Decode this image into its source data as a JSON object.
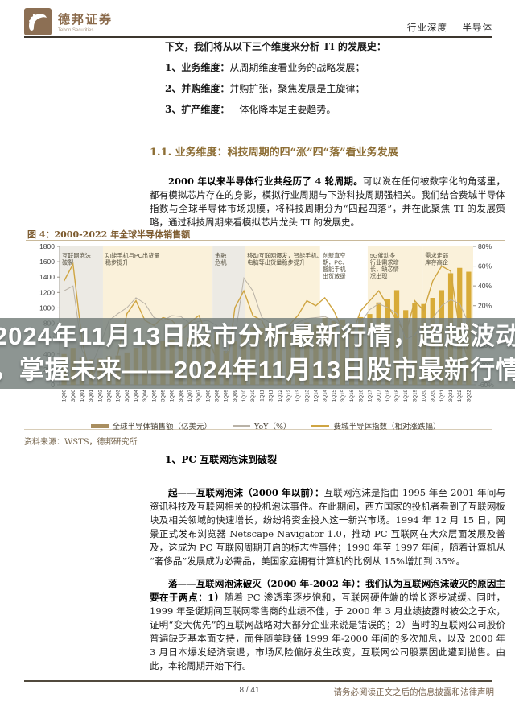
{
  "header": {
    "logo_title": "德邦证券",
    "logo_subtitle": "Tebon Securities",
    "tag1": "行业深度",
    "tag2": "半导体"
  },
  "intro": {
    "lead": "下文，我们将从以下三个维度来分析 TI 的发展史：",
    "items": [
      {
        "label": "1、业务维度：",
        "text": "从周期维度看业务的战略发展；"
      },
      {
        "label": "2、并购维度：",
        "text": "并购扩张，聚焦发展是主旋律；"
      },
      {
        "label": "3、扩产维度：",
        "text": "一体化降本是主要趋势。"
      }
    ]
  },
  "section1": {
    "heading": "1.1. 业务维度：科技周期的四“涨”四“落”看业务发展",
    "para_lead": "2000 年以来半导体行业共经历了 4 轮周期。",
    "para_text": "可以说在任何被数字化的角落里，都有模拟芯片存在的身影，模拟行业周期与下游科技周期强相关。我们结合费城半导体指数与全球半导体市场规模，将科技周期分为“四起四落”，并在此聚焦 TI 的发展策略，通过科技周期来看模拟芯片龙头 TI 的发展史。"
  },
  "figure": {
    "title": "图 4：2000-2022 年全球半导体销售额",
    "source": "资料来源：WSTS，德邦研究所"
  },
  "chart_data": {
    "type": "bar",
    "title": "2000-2022 年全球半导体销售额",
    "x": [
      "1Q00",
      "3Q00",
      "1Q01",
      "3Q01",
      "1Q02",
      "3Q02",
      "1Q03",
      "3Q03",
      "1Q04",
      "3Q04",
      "1Q05",
      "3Q05",
      "1Q06",
      "3Q06",
      "1Q07",
      "3Q07",
      "1Q08",
      "3Q08",
      "1Q09",
      "3Q09",
      "1Q10",
      "3Q10",
      "1Q11",
      "3Q11",
      "1Q12",
      "3Q12",
      "1Q13",
      "3Q13",
      "1Q14",
      "3Q14",
      "1Q15",
      "3Q15",
      "1Q16",
      "3Q16",
      "1Q17",
      "3Q17",
      "1Q18",
      "3Q18",
      "1Q19",
      "3Q19",
      "1Q20",
      "3Q20",
      "1Q21",
      "3Q21",
      "1Q22",
      "3Q22"
    ],
    "series": [
      {
        "name": "全球半导体销售额（亿美元）",
        "kind": "bar",
        "axis": "left",
        "color": "#d6a62f",
        "values": [
          400,
          480,
          350,
          330,
          340,
          370,
          380,
          420,
          480,
          540,
          530,
          570,
          590,
          630,
          610,
          660,
          640,
          680,
          440,
          570,
          690,
          750,
          740,
          760,
          710,
          760,
          740,
          810,
          780,
          870,
          830,
          850,
          790,
          880,
          920,
          1070,
          1110,
          1230,
          970,
          1060,
          1050,
          1130,
          1230,
          1450,
          1520,
          1470
        ]
      },
      {
        "name": "YoY（%）",
        "kind": "line",
        "axis": "right",
        "color": "#b9b2a6",
        "values": [
          35,
          40,
          -25,
          -42,
          -20,
          5,
          12,
          18,
          28,
          22,
          8,
          5,
          10,
          9,
          2,
          4,
          5,
          0,
          -28,
          -12,
          48,
          35,
          8,
          2,
          -5,
          -2,
          3,
          7,
          8,
          9,
          5,
          -1,
          -4,
          3,
          16,
          22,
          18,
          12,
          -14,
          -10,
          5,
          7,
          20,
          26,
          22,
          2
        ]
      },
      {
        "name": "费城半导体指数（相对涨跌幅）",
        "kind": "line",
        "axis": "right",
        "color": "#cfa542",
        "values": [
          45,
          62,
          -15,
          -55,
          -35,
          -58,
          -28,
          12,
          25,
          5,
          0,
          8,
          5,
          -5,
          3,
          10,
          -12,
          -35,
          -52,
          18,
          35,
          10,
          5,
          -15,
          -5,
          0,
          10,
          25,
          20,
          28,
          15,
          -5,
          -10,
          15,
          25,
          35,
          20,
          5,
          -8,
          25,
          15,
          45,
          60,
          55,
          -5,
          -38
        ]
      }
    ],
    "left_axis": {
      "min": 0,
      "max": 1800,
      "ticks": [
        1800,
        1600,
        1400,
        1200,
        1000,
        800,
        600,
        400,
        200,
        0
      ]
    },
    "right_axis": {
      "min": -60,
      "max": 80,
      "ticks": [
        "80%",
        "60%",
        "40%",
        "20%",
        "0%",
        "-20%",
        "-40%",
        "-60%"
      ]
    },
    "bands": [
      {
        "label": "互联网泡沫\n破裂",
        "from": 0.0,
        "to": 0.105,
        "color": "#eceae4"
      },
      {
        "label": "功能手机与PC出货量\n稳步提升",
        "from": 0.105,
        "to": 0.37,
        "color": "#faf1da"
      },
      {
        "label": "金融\n危机",
        "from": 0.37,
        "to": 0.448,
        "color": "#eceae4"
      },
      {
        "label": "移动互联网爆发，智能手机、PC、平板\n电脑等出货量稳步提升",
        "from": 0.448,
        "to": 0.63,
        "color": "#faf1da"
      },
      {
        "label": "创新真空\n期，PC、\n智能手机\n出货放缓",
        "from": 0.63,
        "to": 0.745,
        "color": "#ffffff"
      },
      {
        "label": "5G催动多\n行业需求增\n长，缺芯情\n况出现",
        "from": 0.745,
        "to": 0.878,
        "color": "#faf1da"
      },
      {
        "label": "需求走弱\n库存高企",
        "from": 0.878,
        "to": 1.0,
        "color": "#faf1da"
      }
    ],
    "legend": [
      {
        "label": "全球半导体销售额（亿美元）",
        "swatch": "bar",
        "color": "#a98e5f"
      },
      {
        "label": "YoY（%）",
        "swatch": "line",
        "color": "#b9b2a6"
      },
      {
        "label": "费城半导体指数（相对涨跌幅）",
        "swatch": "line",
        "color": "#cfa542"
      }
    ],
    "legend_position": "bottom",
    "grid": false
  },
  "overlay": {
    "line1": "2024年11月13日股市分析最新行情，超越波动",
    "line2": "，掌握未来——2024年11月13日股市最新行情",
    "background": "rgba(116,126,122,0.82)"
  },
  "body2": {
    "heading": "1、PC 互联网泡沫到破裂",
    "para1_lead": "起——互联网泡沫（2000 年以前）：",
    "para1_text": "互联网泡沫是指由 1995 年至 2001 年间与资讯科技及互联网相关的投机泡沫事件。在此期间，西方国家的投机者看到了互联网板块及相关领域的快速增长，纷纷将资金投入这一新兴市场。1994 年 12 月 15 日，网景正式发布浏览器 Netscape Navigator 1.0，推动 PC 互联网在大众层面发展及普及，这成为 PC 互联网周期开启的标志性事件；1990 年至 1997 年间，随着计算机从“奢侈品”发展成为必需品，美国家庭拥有计算机的比例从 15%增加到 35%。",
    "para2_lead": "落——互联网泡沫破灭（2000 年-2002 年）：我们认为互联网泡沫破灭的原因主要在于两点：1）",
    "para2_text": "随着 PC 渗透率逐步饱和，互联网硬件端的增长逐步减缓。同时，1999 年圣诞期间互联网零售商的业绩不佳，于 2000 年 3 月业绩披露时被公之于众，证明“变大优先”的互联网战略对大部分企业来说是错误的；2）当时的互联网公司股价普遍缺乏基本面支持，而伴随美联储 1999 年-2000 年间的多次加息，以及 2000 年 3 月日本爆发经济衰退，市场风险偏好发生改变，互联网公司股票因此遭到抛售。由此，本轮周期开始下行。"
  },
  "footer": {
    "page": "8 / 41",
    "disclaimer": "请务必阅读正文之后的信息披露和法律声明"
  }
}
